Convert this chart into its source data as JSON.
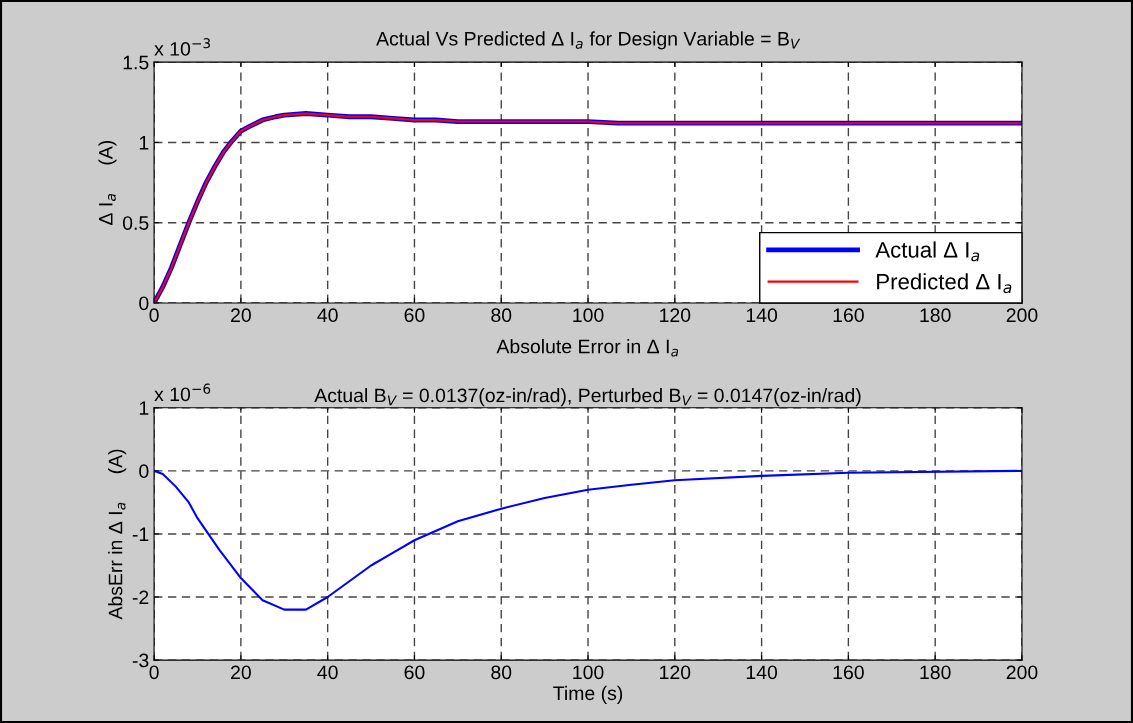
{
  "chart_data": [
    {
      "type": "line",
      "title": "Actual Vs Predicted Δ I$_{a}$ for Design Variable = B$_{V}$",
      "ylabel": "Δ I$_{a}$     (A)",
      "annotations": [
        "x 10$^{−3}$"
      ],
      "x": [
        0,
        2,
        4,
        6,
        8,
        10,
        12,
        14,
        16,
        18,
        20,
        22,
        25,
        28,
        30,
        35,
        40,
        45,
        50,
        55,
        60,
        65,
        70,
        80,
        90,
        100,
        107,
        110,
        150,
        200
      ],
      "series": [
        {
          "name": "Actual Δ I$_{a}$",
          "color": "#0000ff",
          "values": [
            0,
            0.1,
            0.22,
            0.36,
            0.5,
            0.63,
            0.75,
            0.85,
            0.94,
            1.01,
            1.07,
            1.1,
            1.14,
            1.16,
            1.17,
            1.18,
            1.17,
            1.16,
            1.16,
            1.15,
            1.14,
            1.14,
            1.13,
            1.13,
            1.13,
            1.13,
            1.12,
            1.12,
            1.12,
            1.12
          ]
        },
        {
          "name": "Predicted Δ I$_{a}$",
          "color": "#ff0000",
          "values": [
            0,
            0.1,
            0.22,
            0.36,
            0.5,
            0.63,
            0.75,
            0.85,
            0.94,
            1.01,
            1.07,
            1.1,
            1.14,
            1.16,
            1.17,
            1.18,
            1.17,
            1.16,
            1.16,
            1.15,
            1.14,
            1.14,
            1.13,
            1.13,
            1.13,
            1.13,
            1.12,
            1.12,
            1.12,
            1.12
          ]
        }
      ],
      "xlim": [
        0,
        200
      ],
      "xticks": [
        0,
        20,
        40,
        60,
        80,
        100,
        120,
        140,
        160,
        180,
        200
      ],
      "ylim": [
        0,
        1.5
      ],
      "yticks": [
        0,
        0.5,
        1,
        1.5
      ],
      "grid": true,
      "legend": "bottom right",
      "line_style": "solid"
    },
    {
      "type": "line",
      "title": "Absolute Error in Δ I$_{a}$",
      "subtitle": "Actual B$_{V}$ = 0.0137(oz-in/rad), Perturbed B$_{V}$ = 0.0147(oz-in/rad)",
      "xlabel": "Time (s)",
      "ylabel": "AbsErr in Δ I$_{a}$     (A)",
      "annotations": [
        "x 10$^{−6}$"
      ],
      "x": [
        0,
        2,
        5,
        8,
        10,
        15,
        20,
        25,
        30,
        35,
        40,
        45,
        50,
        55,
        60,
        70,
        80,
        90,
        100,
        110,
        120,
        140,
        160,
        200
      ],
      "series": [
        {
          "color": "#0000ff",
          "values": [
            0,
            -0.05,
            -0.25,
            -0.5,
            -0.75,
            -1.25,
            -1.7,
            -2.05,
            -2.2,
            -2.2,
            -2.0,
            -1.75,
            -1.5,
            -1.3,
            -1.1,
            -0.8,
            -0.6,
            -0.43,
            -0.3,
            -0.22,
            -0.15,
            -0.08,
            -0.03,
            0
          ]
        }
      ],
      "xlim": [
        0,
        200
      ],
      "xticks": [
        0,
        20,
        40,
        60,
        80,
        100,
        120,
        140,
        160,
        180,
        200
      ],
      "ylim": [
        -3,
        1
      ],
      "yticks": [
        -3,
        -2,
        -1,
        0,
        1
      ],
      "grid": true,
      "line_style": "solid"
    }
  ]
}
